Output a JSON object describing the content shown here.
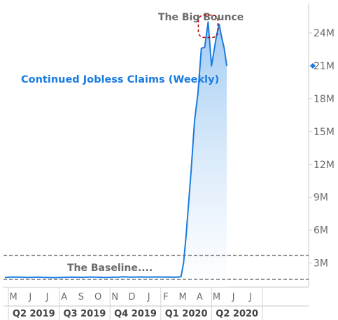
{
  "chart_data": {
    "type": "area",
    "title": "Continued Jobless Claims (Weekly)",
    "annotations": {
      "peak_label": "The Big Bounce",
      "baseline_label": "The Baseline...."
    },
    "units": "millions",
    "ylim": [
      0.8,
      26.5
    ],
    "y_ticks": [
      {
        "value": 3,
        "label": "3M"
      },
      {
        "value": 6,
        "label": "6M"
      },
      {
        "value": 9,
        "label": "9M"
      },
      {
        "value": 12,
        "label": "12M"
      },
      {
        "value": 15,
        "label": "15M"
      },
      {
        "value": 18,
        "label": "18M"
      },
      {
        "value": 21,
        "label": "21M"
      },
      {
        "value": 24,
        "label": "24M"
      }
    ],
    "baseline_levels": [
      1.5,
      3.7
    ],
    "last_value": 21,
    "month_ticks": [
      "M",
      "J",
      "J",
      "A",
      "S",
      "O",
      "N",
      "D",
      "J",
      "F",
      "M",
      "A",
      "M",
      "J",
      "J"
    ],
    "quarter_ticks": [
      "Q2 2019",
      "Q3 2019",
      "Q4 2019",
      "Q1 2020",
      "Q2 2020"
    ],
    "series": [
      {
        "x": [
          0,
          0.25,
          0.5,
          0.75,
          1,
          1.25,
          1.5,
          1.75,
          2,
          2.25,
          2.5,
          2.75,
          3,
          3.25,
          3.5,
          3.75,
          4,
          4.25,
          4.5,
          4.75,
          5,
          5.25,
          5.5,
          5.75,
          6,
          6.25,
          6.5,
          6.75,
          7,
          7.25,
          7.5,
          7.75,
          8,
          8.25,
          8.5,
          8.75,
          9,
          9.25,
          9.5,
          9.75,
          10,
          10.25,
          10.4,
          10.55,
          10.7,
          10.85,
          11,
          11.2,
          11.4,
          11.6,
          11.8,
          12,
          12.2,
          12.35,
          12.5,
          12.65,
          12.8,
          12.95,
          13.1
        ],
        "values": [
          1.68,
          1.7,
          1.72,
          1.71,
          1.7,
          1.69,
          1.68,
          1.7,
          1.71,
          1.69,
          1.68,
          1.67,
          1.66,
          1.68,
          1.69,
          1.7,
          1.71,
          1.7,
          1.69,
          1.7,
          1.72,
          1.71,
          1.7,
          1.69,
          1.68,
          1.69,
          1.7,
          1.71,
          1.74,
          1.72,
          1.71,
          1.72,
          1.73,
          1.72,
          1.71,
          1.72,
          1.73,
          1.72,
          1.71,
          1.72,
          1.7,
          1.72,
          1.75,
          3.0,
          5.5,
          8.5,
          11.5,
          16.0,
          18.5,
          22.6,
          22.7,
          25.0,
          21.0,
          22.4,
          23.8,
          24.8,
          23.6,
          22.6,
          21.0
        ]
      }
    ]
  }
}
